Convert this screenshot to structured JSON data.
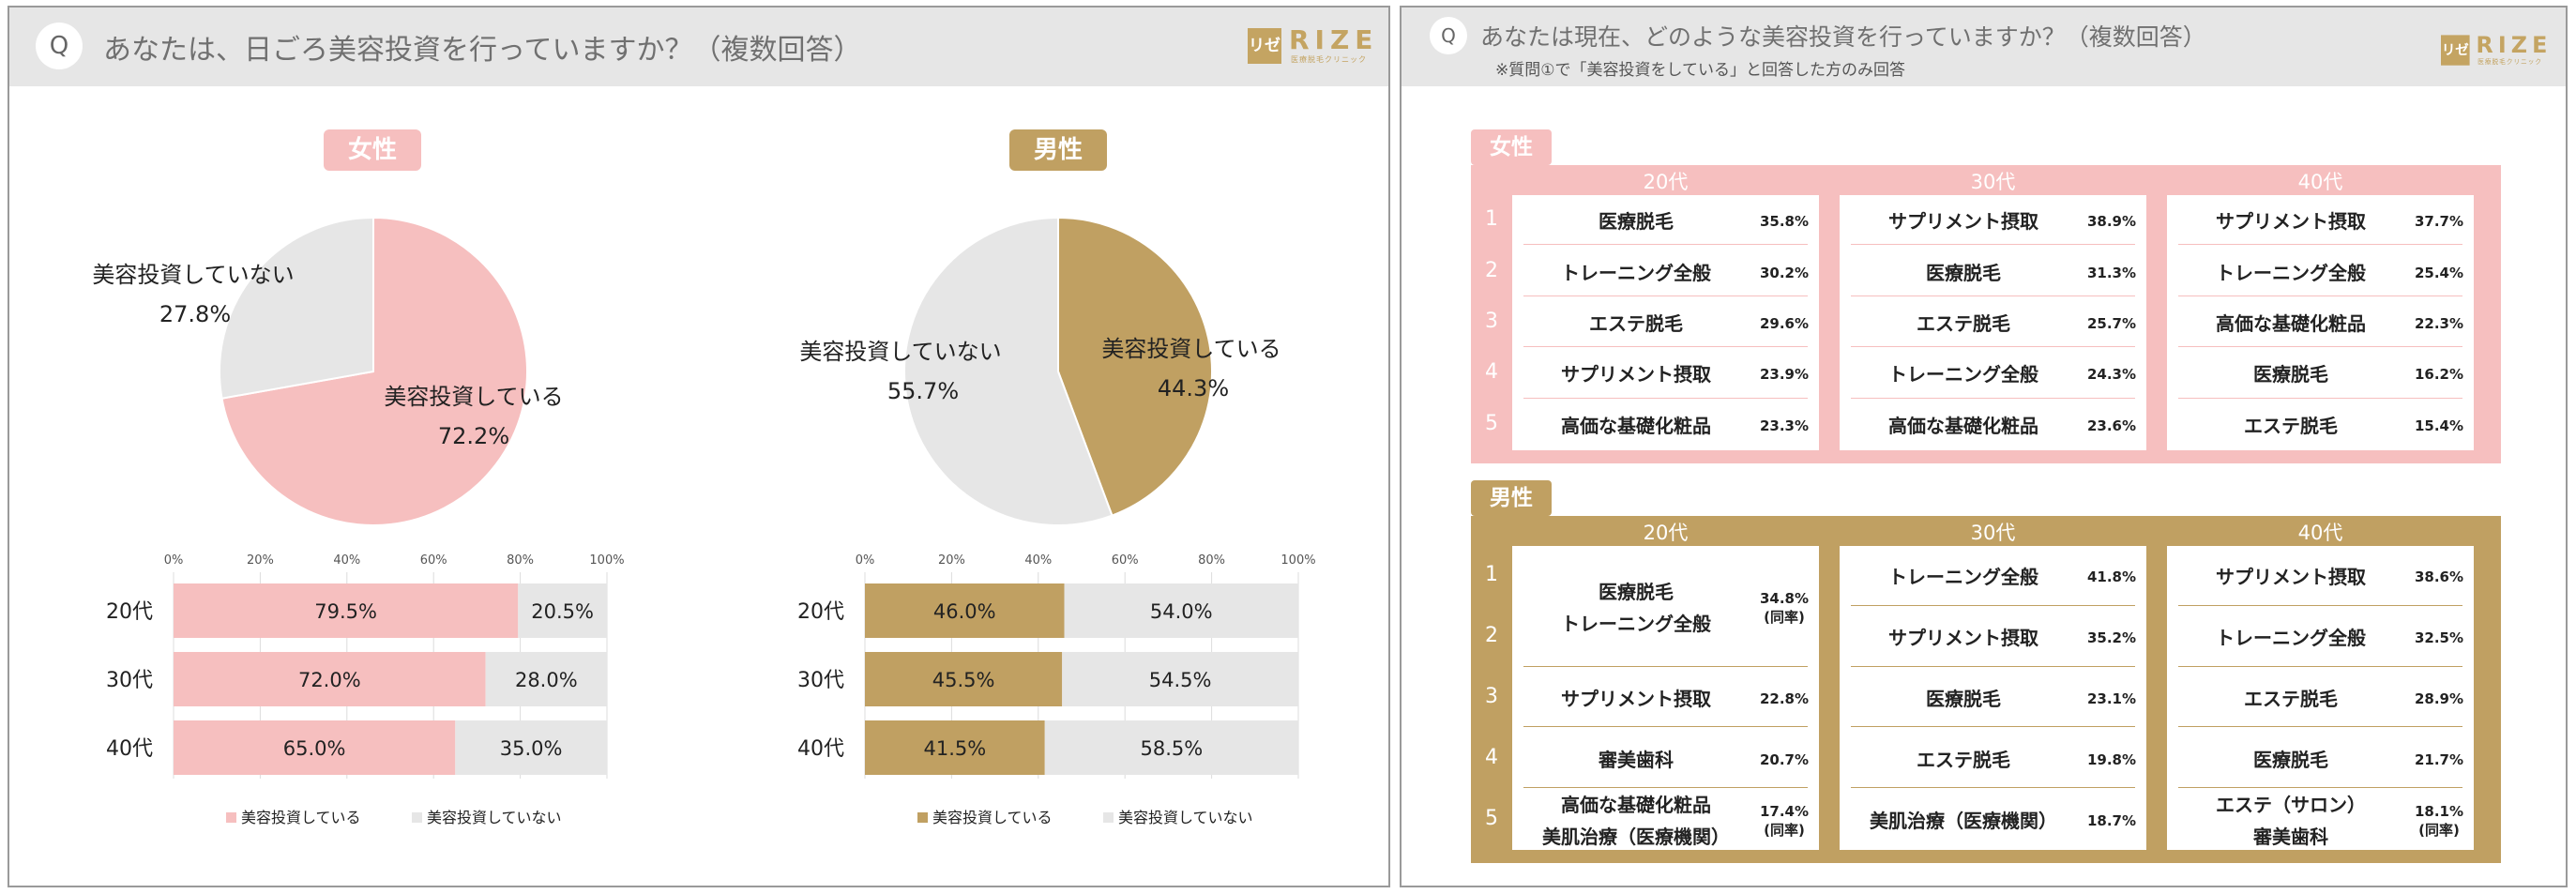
{
  "colors": {
    "female": "#f6bfbf",
    "male": "#c0a062",
    "not_investing": "#e6e6e6",
    "brand": "#c4a462"
  },
  "logo": {
    "mark": "リゼ",
    "word": "RIZE",
    "sub": "医療脱毛クリニック"
  },
  "left": {
    "q_mark": "Q",
    "question": "あなたは、日ごろ美容投資を行っていますか？（複数回答）",
    "female_label": "女性",
    "male_label": "男性",
    "female_pie": {
      "invest_label": "美容投資している",
      "invest_value": "72.2%",
      "not_label": "美容投資していない",
      "not_value": "27.8%"
    },
    "male_pie": {
      "invest_label": "美容投資している",
      "invest_value": "44.3%",
      "not_label": "美容投資していない",
      "not_value": "55.7%"
    },
    "axis_ticks": [
      "0%",
      "20%",
      "40%",
      "60%",
      "80%",
      "100%"
    ],
    "legend": {
      "invest": "美容投資している",
      "not": "美容投資していない"
    }
  },
  "chart_data": [
    {
      "type": "pie",
      "name": "女性",
      "labels": [
        "美容投資している",
        "美容投資していない"
      ],
      "values": [
        72.2,
        27.8
      ],
      "colors": [
        "#f6bfbf",
        "#e6e6e6"
      ]
    },
    {
      "type": "pie",
      "name": "男性",
      "labels": [
        "美容投資している",
        "美容投資していない"
      ],
      "values": [
        44.3,
        55.7
      ],
      "colors": [
        "#c0a062",
        "#e6e6e6"
      ]
    },
    {
      "type": "bar",
      "orientation": "horizontal-stacked",
      "name": "女性",
      "categories": [
        "20代",
        "30代",
        "40代"
      ],
      "series": [
        {
          "name": "美容投資している",
          "values": [
            79.5,
            72.0,
            65.0
          ],
          "labels": [
            "79.5%",
            "72.0%",
            "65.0%"
          ]
        },
        {
          "name": "美容投資していない",
          "values": [
            20.5,
            28.0,
            35.0
          ],
          "labels": [
            "20.5%",
            "28.0%",
            "35.0%"
          ]
        }
      ],
      "xlim": [
        0,
        100
      ],
      "legend_position": "bottom"
    },
    {
      "type": "bar",
      "orientation": "horizontal-stacked",
      "name": "男性",
      "categories": [
        "20代",
        "30代",
        "40代"
      ],
      "series": [
        {
          "name": "美容投資している",
          "values": [
            46.0,
            45.5,
            41.5
          ],
          "labels": [
            "46.0%",
            "45.5%",
            "41.5%"
          ]
        },
        {
          "name": "美容投資していない",
          "values": [
            54.0,
            54.5,
            58.5
          ],
          "labels": [
            "54.0%",
            "54.5%",
            "58.5%"
          ]
        }
      ],
      "xlim": [
        0,
        100
      ],
      "legend_position": "bottom"
    },
    {
      "type": "table",
      "name": "女性 ランキング",
      "columns": [
        "20代",
        "30代",
        "40代"
      ],
      "rows": [
        [
          [
            "医療脱毛",
            "35.8%"
          ],
          [
            "サプリメント摂取",
            "38.9%"
          ],
          [
            "サプリメント摂取",
            "37.7%"
          ]
        ],
        [
          [
            "トレーニング全般",
            "30.2%"
          ],
          [
            "医療脱毛",
            "31.3%"
          ],
          [
            "トレーニング全般",
            "25.4%"
          ]
        ],
        [
          [
            "エステ脱毛",
            "29.6%"
          ],
          [
            "エステ脱毛",
            "25.7%"
          ],
          [
            "高価な基礎化粧品",
            "22.3%"
          ]
        ],
        [
          [
            "サプリメント摂取",
            "23.9%"
          ],
          [
            "トレーニング全般",
            "24.3%"
          ],
          [
            "医療脱毛",
            "16.2%"
          ]
        ],
        [
          [
            "高価な基礎化粧品",
            "23.3%"
          ],
          [
            "高価な基礎化粧品",
            "23.6%"
          ],
          [
            "エステ脱毛",
            "15.4%"
          ]
        ]
      ]
    }
  ],
  "right": {
    "q_mark": "Q",
    "question": "あなたは現在、どのような美容投資を行っていますか？（複数回答）",
    "note": "※質問①で「美容投資をしている」と回答した方のみ回答",
    "ranks": [
      "1",
      "2",
      "3",
      "4",
      "5"
    ],
    "female": {
      "label": "女性",
      "columns": [
        {
          "header": "20代",
          "items": [
            {
              "name": "医療脱毛",
              "pct": "35.8%"
            },
            {
              "name": "トレーニング全般",
              "pct": "30.2%"
            },
            {
              "name": "エステ脱毛",
              "pct": "29.6%"
            },
            {
              "name": "サプリメント摂取",
              "pct": "23.9%"
            },
            {
              "name": "高価な基礎化粧品",
              "pct": "23.3%"
            }
          ]
        },
        {
          "header": "30代",
          "items": [
            {
              "name": "サプリメント摂取",
              "pct": "38.9%"
            },
            {
              "name": "医療脱毛",
              "pct": "31.3%"
            },
            {
              "name": "エステ脱毛",
              "pct": "25.7%"
            },
            {
              "name": "トレーニング全般",
              "pct": "24.3%"
            },
            {
              "name": "高価な基礎化粧品",
              "pct": "23.6%"
            }
          ]
        },
        {
          "header": "40代",
          "items": [
            {
              "name": "サプリメント摂取",
              "pct": "37.7%"
            },
            {
              "name": "トレーニング全般",
              "pct": "25.4%"
            },
            {
              "name": "高価な基礎化粧品",
              "pct": "22.3%"
            },
            {
              "name": "医療脱毛",
              "pct": "16.2%"
            },
            {
              "name": "エステ脱毛",
              "pct": "15.4%"
            }
          ]
        }
      ]
    },
    "male": {
      "label": "男性",
      "columns": [
        {
          "header": "20代",
          "items": [
            {
              "name": "医療脱毛\nトレーニング全般",
              "pct": "34.8%\n(同率)",
              "span": 2
            },
            {
              "name": "サプリメント摂取",
              "pct": "22.8%"
            },
            {
              "name": "審美歯科",
              "pct": "20.7%"
            },
            {
              "name": "高価な基礎化粧品\n美肌治療（医療機関）",
              "pct": "17.4%\n(同率)"
            }
          ]
        },
        {
          "header": "30代",
          "items": [
            {
              "name": "トレーニング全般",
              "pct": "41.8%"
            },
            {
              "name": "サプリメント摂取",
              "pct": "35.2%"
            },
            {
              "name": "医療脱毛",
              "pct": "23.1%"
            },
            {
              "name": "エステ脱毛",
              "pct": "19.8%"
            },
            {
              "name": "美肌治療（医療機関）",
              "pct": "18.7%"
            }
          ]
        },
        {
          "header": "40代",
          "items": [
            {
              "name": "サプリメント摂取",
              "pct": "38.6%"
            },
            {
              "name": "トレーニング全般",
              "pct": "32.5%"
            },
            {
              "name": "エステ脱毛",
              "pct": "28.9%"
            },
            {
              "name": "医療脱毛",
              "pct": "21.7%"
            },
            {
              "name": "エステ（サロン）\n審美歯科",
              "pct": "18.1%\n(同率)"
            }
          ]
        }
      ]
    }
  }
}
